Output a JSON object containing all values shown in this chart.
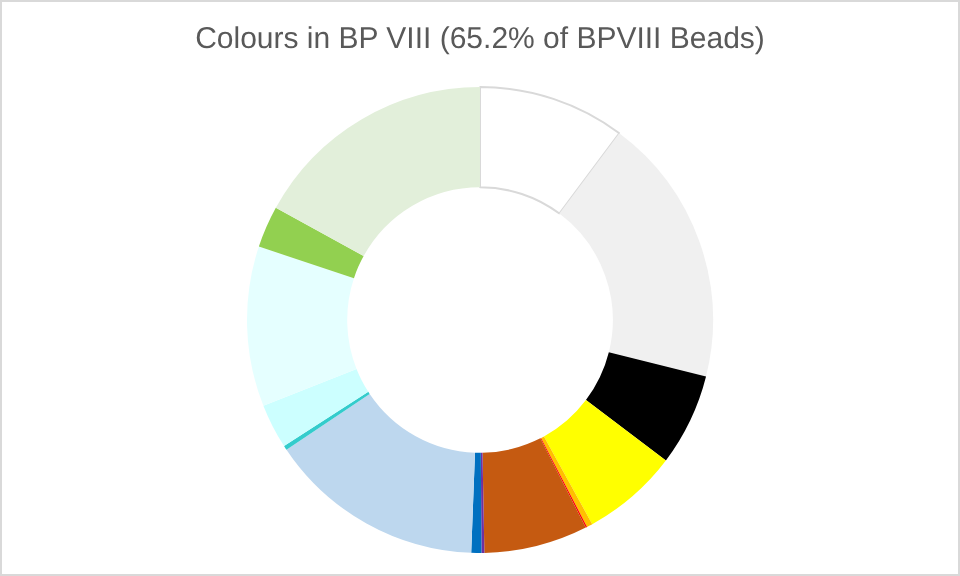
{
  "chart_data": {
    "type": "donut",
    "title": "Colours in BP VIII (65.2% of BPVIII Beads)",
    "categories": [
      null,
      null,
      null,
      null,
      null,
      null,
      null,
      null,
      null,
      null,
      null,
      null,
      null,
      null,
      null
    ],
    "values": [
      10.2,
      18.7,
      6.4,
      6.7,
      0.4,
      0.1,
      7.2,
      0.2,
      0.7,
      15,
      0.3,
      3.1,
      11.1,
      2.9,
      17
    ],
    "colors": [
      "#ffffff",
      "#f0f0f0",
      "#000000",
      "#ffff00",
      "#ffc000",
      "#ff0000",
      "#c55a11",
      "#7030a0",
      "#0070c0",
      "#bdd7ee",
      "#33cccc",
      "#ccffff",
      "#e5ffff",
      "#92d050",
      "#e2efda"
    ],
    "legend": false
  }
}
